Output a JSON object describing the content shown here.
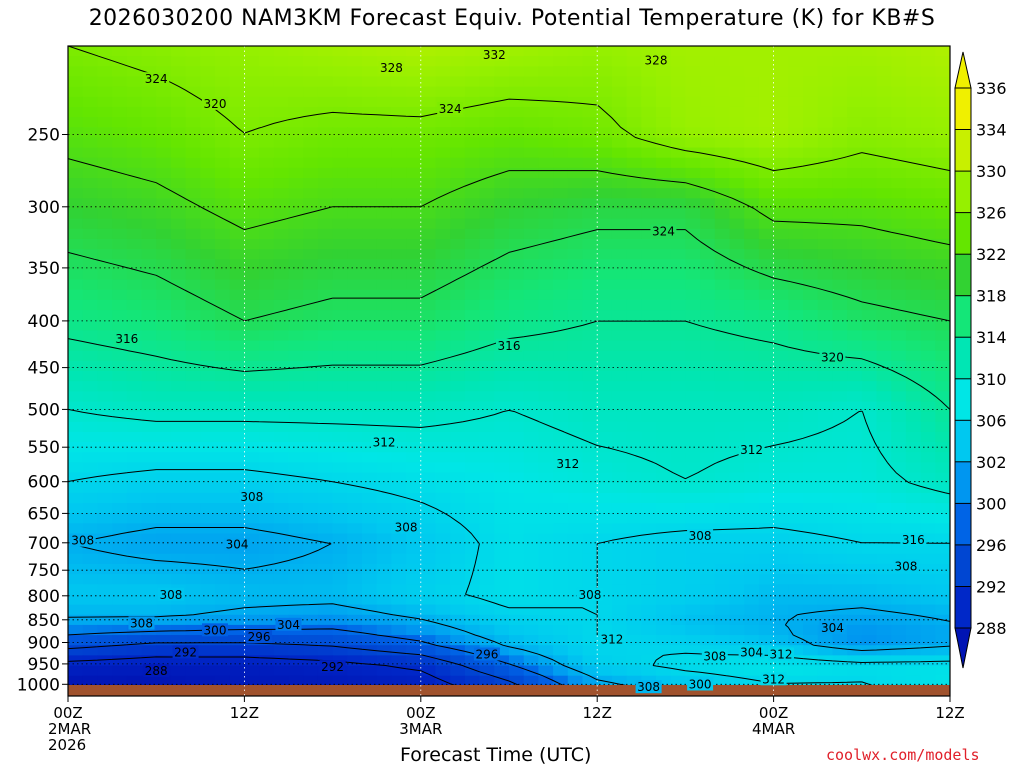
{
  "title": "2026030200 NAM3KM Forecast Equiv. Potential Temperature (K) for KB#S",
  "credit": "coolwx.com/models",
  "chart_data": {
    "type": "heatmap",
    "title": "2026030200 NAM3KM Forecast Equiv. Potential Temperature (K) for KB#S",
    "xlabel": "Forecast Time (UTC)",
    "ylabel": "",
    "y_scale": "log-pressure",
    "ylim": [
      1030,
      200
    ],
    "y_ticks": [
      250,
      300,
      350,
      400,
      450,
      500,
      550,
      600,
      650,
      700,
      750,
      800,
      850,
      900,
      950,
      1000
    ],
    "xlim": [
      0,
      60
    ],
    "x_ticks": [
      {
        "hour": 0,
        "lines": [
          "00Z",
          "2MAR",
          "2026"
        ]
      },
      {
        "hour": 12,
        "lines": [
          "12Z"
        ]
      },
      {
        "hour": 24,
        "lines": [
          "00Z",
          "3MAR"
        ]
      },
      {
        "hour": 36,
        "lines": [
          "12Z"
        ]
      },
      {
        "hour": 48,
        "lines": [
          "00Z",
          "4MAR"
        ]
      },
      {
        "hour": 60,
        "lines": [
          "12Z"
        ]
      }
    ],
    "colorbar": {
      "units": "K",
      "labels": [
        336,
        334,
        330,
        326,
        322,
        318,
        314,
        310,
        306,
        302,
        300,
        296,
        292,
        288
      ],
      "colors": [
        "#f0f000",
        "#c8f000",
        "#96f000",
        "#64e600",
        "#32d232",
        "#14e678",
        "#00e6b4",
        "#00e6e6",
        "#00c8f0",
        "#0096f0",
        "#0064e6",
        "#0046d2",
        "#0028c8",
        "#0014b4"
      ]
    },
    "contour_levels": [
      288,
      292,
      296,
      300,
      304,
      308,
      312,
      316,
      320,
      324,
      328,
      332
    ],
    "contour_labels": [
      {
        "v": "332",
        "h": 29.0,
        "p": 205
      },
      {
        "v": "328",
        "h": 22.0,
        "p": 212
      },
      {
        "v": "328",
        "h": 40.0,
        "p": 208
      },
      {
        "v": "324",
        "h": 6.0,
        "p": 218
      },
      {
        "v": "320",
        "h": 10.0,
        "p": 232
      },
      {
        "v": "324",
        "h": 26.0,
        "p": 235
      },
      {
        "v": "324",
        "h": 40.5,
        "p": 320
      },
      {
        "v": "316",
        "h": 4.0,
        "p": 420
      },
      {
        "v": "316",
        "h": 30.0,
        "p": 427
      },
      {
        "v": "320",
        "h": 52.0,
        "p": 440
      },
      {
        "v": "312",
        "h": 21.5,
        "p": 545
      },
      {
        "v": "312",
        "h": 34.0,
        "p": 575
      },
      {
        "v": "312",
        "h": 46.5,
        "p": 555
      },
      {
        "v": "308",
        "h": 12.5,
        "p": 625
      },
      {
        "v": "308",
        "h": 1.0,
        "p": 698
      },
      {
        "v": "304",
        "h": 11.5,
        "p": 705
      },
      {
        "v": "308",
        "h": 23.0,
        "p": 675
      },
      {
        "v": "308",
        "h": 43.0,
        "p": 690
      },
      {
        "v": "316",
        "h": 57.5,
        "p": 697
      },
      {
        "v": "308",
        "h": 57.0,
        "p": 745
      },
      {
        "v": "308",
        "h": 7.0,
        "p": 800
      },
      {
        "v": "308",
        "h": 35.5,
        "p": 800
      },
      {
        "v": "308",
        "h": 5.0,
        "p": 860
      },
      {
        "v": "304",
        "h": 15.0,
        "p": 863
      },
      {
        "v": "300",
        "h": 10.0,
        "p": 875
      },
      {
        "v": "296",
        "h": 13.0,
        "p": 890
      },
      {
        "v": "292",
        "h": 8.0,
        "p": 925
      },
      {
        "v": "288",
        "h": 6.0,
        "p": 970
      },
      {
        "v": "292",
        "h": 18.0,
        "p": 960
      },
      {
        "v": "296",
        "h": 28.5,
        "p": 930
      },
      {
        "v": "312",
        "h": 37.0,
        "p": 895
      },
      {
        "v": "304",
        "h": 52.0,
        "p": 870
      },
      {
        "v": "308",
        "h": 44.0,
        "p": 935
      },
      {
        "v": "304",
        "h": 46.5,
        "p": 925
      },
      {
        "v": "312",
        "h": 48.5,
        "p": 930
      },
      {
        "v": "312",
        "h": 48.0,
        "p": 990
      },
      {
        "v": "308",
        "h": 39.5,
        "p": 1010
      },
      {
        "v": "300",
        "h": 43.0,
        "p": 1003
      }
    ],
    "temperature_field_K": {
      "note": "approximate theta-e (K) at sampled forecast hours (columns) and pressure levels (rows)",
      "hours": [
        0,
        6,
        12,
        18,
        24,
        30,
        36,
        42,
        48,
        54,
        60
      ],
      "levels": [
        200,
        250,
        300,
        400,
        500,
        600,
        700,
        800,
        850,
        900,
        950,
        1000,
        1030
      ],
      "values": [
        [
          328,
          329,
          330,
          331,
          332,
          331,
          330,
          331,
          331,
          331,
          332
        ],
        [
          325,
          326,
          328,
          327,
          327,
          326,
          327,
          330,
          331,
          329,
          330
        ],
        [
          322,
          323,
          325,
          324,
          324,
          322,
          321,
          321,
          325,
          325,
          326
        ],
        [
          317,
          318,
          320,
          319,
          319,
          317,
          316,
          316,
          317,
          319,
          320
        ],
        [
          312,
          313,
          313,
          313,
          313,
          312,
          313,
          313,
          313,
          312,
          316
        ],
        [
          308,
          307,
          307,
          308,
          309,
          310,
          311,
          312,
          311,
          311,
          313
        ],
        [
          304,
          303,
          303,
          304,
          306,
          309,
          308,
          307,
          307,
          308,
          308
        ],
        [
          306,
          306,
          305,
          305,
          307,
          309,
          308,
          307,
          305,
          305,
          306
        ],
        [
          304,
          304,
          303,
          302,
          304,
          307,
          308,
          305,
          304,
          303,
          304
        ],
        [
          298,
          296,
          296,
          297,
          300,
          305,
          308,
          307,
          305,
          301,
          303
        ],
        [
          291,
          290,
          290,
          291,
          293,
          300,
          307,
          309,
          310,
          309,
          309
        ],
        [
          288,
          288,
          289,
          289,
          290,
          295,
          303,
          306,
          308,
          308,
          310
        ],
        [
          288,
          288,
          289,
          289,
          290,
          295,
          303,
          305,
          306,
          306,
          308
        ]
      ]
    }
  }
}
